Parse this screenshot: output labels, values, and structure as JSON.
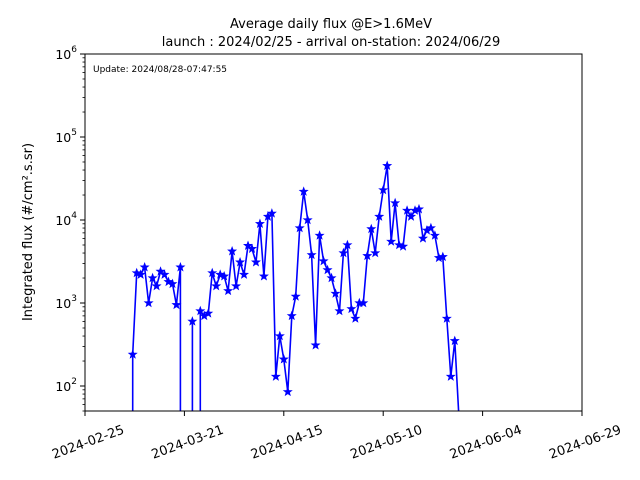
{
  "chart_data": {
    "type": "line",
    "title": "Average daily flux @E>1.6MeV",
    "subtitle": "launch : 2024/02/25 - arrival on-station: 2024/06/29",
    "xlabel": "",
    "ylabel": "Integrated flux (#/cm².s.sr)",
    "annotation": "Update: 2024/08/28-07:47:55",
    "yscale": "log",
    "ylim": [
      50,
      1000000
    ],
    "xlim": [
      "2024-02-25",
      "2024-06-29"
    ],
    "grid": false,
    "series_color": "#0000ff",
    "x_ticks": [
      "2024-02-25",
      "2024-03-21",
      "2024-04-15",
      "2024-05-10",
      "2024-06-04",
      "2024-06-29"
    ],
    "y_ticks": [
      {
        "value": 100,
        "base": "10",
        "exp": "2"
      },
      {
        "value": 1000,
        "base": "10",
        "exp": "3"
      },
      {
        "value": 10000,
        "base": "10",
        "exp": "4"
      },
      {
        "value": 100000,
        "base": "10",
        "exp": "5"
      },
      {
        "value": 1000000,
        "base": "10",
        "exp": "6"
      }
    ],
    "series": [
      {
        "x": [
          "2024-03-08",
          "2024-03-09",
          "2024-03-10",
          "2024-03-11",
          "2024-03-12",
          "2024-03-13",
          "2024-03-14",
          "2024-03-15",
          "2024-03-16",
          "2024-03-17",
          "2024-03-18",
          "2024-03-19",
          "2024-03-20",
          "2024-03-23",
          "2024-03-25",
          "2024-03-26",
          "2024-03-27",
          "2024-03-28",
          "2024-03-29",
          "2024-03-30",
          "2024-03-31",
          "2024-04-01",
          "2024-04-02",
          "2024-04-03",
          "2024-04-04",
          "2024-04-05",
          "2024-04-06",
          "2024-04-07",
          "2024-04-08",
          "2024-04-09",
          "2024-04-10",
          "2024-04-11",
          "2024-04-12",
          "2024-04-13",
          "2024-04-14",
          "2024-04-15",
          "2024-04-16",
          "2024-04-17",
          "2024-04-18",
          "2024-04-19",
          "2024-04-20",
          "2024-04-21",
          "2024-04-22",
          "2024-04-23",
          "2024-04-24",
          "2024-04-25",
          "2024-04-26",
          "2024-04-27",
          "2024-04-28",
          "2024-04-29",
          "2024-04-30",
          "2024-05-01",
          "2024-05-02",
          "2024-05-03",
          "2024-05-04",
          "2024-05-05",
          "2024-05-06",
          "2024-05-07",
          "2024-05-08",
          "2024-05-09",
          "2024-05-10",
          "2024-05-11",
          "2024-05-12",
          "2024-05-13",
          "2024-05-14",
          "2024-05-15",
          "2024-05-16",
          "2024-05-17",
          "2024-05-18",
          "2024-05-19",
          "2024-05-20",
          "2024-05-21",
          "2024-05-22",
          "2024-05-23",
          "2024-05-24",
          "2024-05-25",
          "2024-05-26",
          "2024-05-27",
          "2024-05-28",
          "2024-05-29",
          "2024-06-02",
          "2024-06-07"
        ],
        "y": [
          240,
          2300,
          2200,
          2700,
          1000,
          2000,
          1600,
          2400,
          2200,
          1800,
          1700,
          950,
          2700,
          600,
          800,
          700,
          750,
          2300,
          1600,
          2200,
          2100,
          1400,
          4200,
          1600,
          3100,
          2200,
          4900,
          4500,
          3100,
          9000,
          2100,
          11000,
          12000,
          130,
          400,
          210,
          85,
          700,
          1200,
          8000,
          22000,
          10000,
          3800,
          310,
          6500,
          3200,
          2500,
          2000,
          1300,
          800,
          4000,
          5000,
          850,
          650,
          1000,
          1000,
          3700,
          7800,
          4000,
          11000,
          23000,
          45000,
          5500,
          16000,
          5000,
          4800,
          13000,
          11000,
          13000,
          13500,
          6000,
          7500,
          8000,
          6500,
          3500,
          3600,
          650,
          130,
          350,
          0,
          0,
          0
        ],
        "y_note": "non-positive values mark gaps"
      }
    ]
  }
}
